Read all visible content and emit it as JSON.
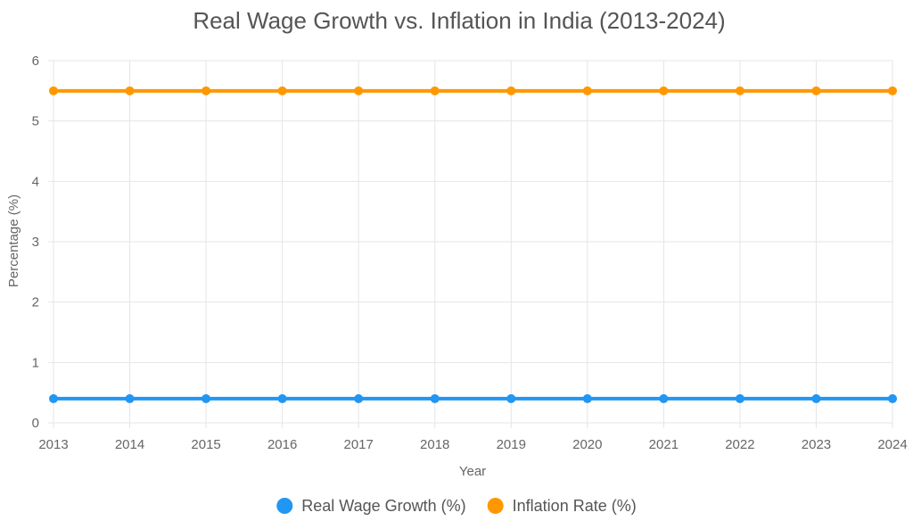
{
  "chart_data": {
    "type": "line",
    "title": "Real Wage Growth vs. Inflation in India (2013-2024)",
    "xlabel": "Year",
    "ylabel": "Percentage (%)",
    "categories": [
      "2013",
      "2014",
      "2015",
      "2016",
      "2017",
      "2018",
      "2019",
      "2020",
      "2021",
      "2022",
      "2023",
      "2024"
    ],
    "ylim": [
      0,
      6
    ],
    "yticks": [
      0,
      1,
      2,
      3,
      4,
      5,
      6
    ],
    "grid": true,
    "legend_position": "bottom",
    "series": [
      {
        "name": "Real Wage Growth (%)",
        "color": "#2196F3",
        "values": [
          0.4,
          0.4,
          0.4,
          0.4,
          0.4,
          0.4,
          0.4,
          0.4,
          0.4,
          0.4,
          0.4,
          0.4
        ]
      },
      {
        "name": "Inflation Rate (%)",
        "color": "#FF9800",
        "values": [
          5.5,
          5.5,
          5.5,
          5.5,
          5.5,
          5.5,
          5.5,
          5.5,
          5.5,
          5.5,
          5.5,
          5.5
        ]
      }
    ]
  }
}
